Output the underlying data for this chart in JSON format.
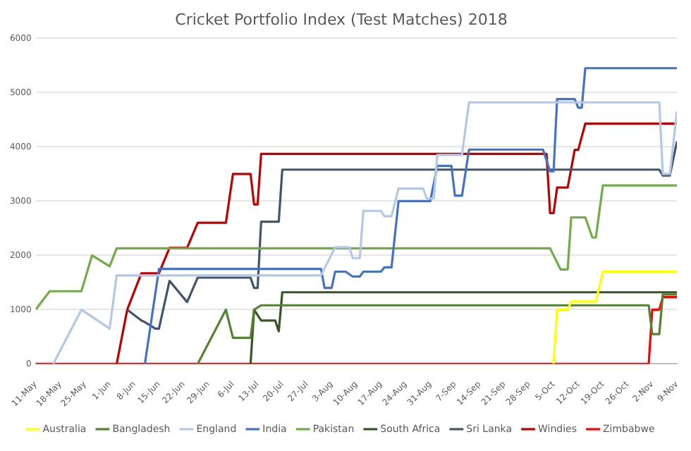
{
  "chart_data": {
    "type": "line",
    "title": "Cricket Portfolio Index (Test Matches) 2018",
    "xlim": [
      "2018-05-11",
      "2018-11-09"
    ],
    "xticks": [
      {
        "value": "2018-05-11",
        "label": "11-May"
      },
      {
        "value": "2018-05-18",
        "label": "18-May"
      },
      {
        "value": "2018-05-25",
        "label": "25-May"
      },
      {
        "value": "2018-06-01",
        "label": "1-Jun"
      },
      {
        "value": "2018-06-08",
        "label": "8-Jun"
      },
      {
        "value": "2018-06-15",
        "label": "15-Jun"
      },
      {
        "value": "2018-06-22",
        "label": "22-Jun"
      },
      {
        "value": "2018-06-29",
        "label": "29-Jun"
      },
      {
        "value": "2018-07-06",
        "label": "6-Jul"
      },
      {
        "value": "2018-07-13",
        "label": "13-Jul"
      },
      {
        "value": "2018-07-20",
        "label": "20-Jul"
      },
      {
        "value": "2018-07-27",
        "label": "27-Jul"
      },
      {
        "value": "2018-08-03",
        "label": "3-Aug"
      },
      {
        "value": "2018-08-10",
        "label": "10-Aug"
      },
      {
        "value": "2018-08-17",
        "label": "17-Aug"
      },
      {
        "value": "2018-08-24",
        "label": "24-Aug"
      },
      {
        "value": "2018-08-31",
        "label": "31-Aug"
      },
      {
        "value": "2018-09-07",
        "label": "7-Sep"
      },
      {
        "value": "2018-09-14",
        "label": "14-Sep"
      },
      {
        "value": "2018-09-21",
        "label": "21-Sep"
      },
      {
        "value": "2018-09-28",
        "label": "28-Sep"
      },
      {
        "value": "2018-10-05",
        "label": "5-Oct"
      },
      {
        "value": "2018-10-12",
        "label": "12-Oct"
      },
      {
        "value": "2018-10-19",
        "label": "19-Oct"
      },
      {
        "value": "2018-10-26",
        "label": "26-Oct"
      },
      {
        "value": "2018-11-02",
        "label": "2-Nov"
      },
      {
        "value": "2018-11-09",
        "label": "9-Nov"
      }
    ],
    "ylim": [
      0,
      6000
    ],
    "yticks": [
      0,
      1000,
      2000,
      3000,
      4000,
      5000,
      6000
    ],
    "grid": "y",
    "legend": "bottom",
    "series": [
      {
        "name": "Australia",
        "color": "#ffff00",
        "x": [
          "2018-10-05",
          "2018-10-06",
          "2018-10-09",
          "2018-10-10",
          "2018-10-17",
          "2018-10-19",
          "2018-11-09"
        ],
        "values": [
          0,
          1000,
          1000,
          1150,
          1150,
          1700,
          1700
        ]
      },
      {
        "name": "Bangladesh",
        "color": "#548235",
        "x": [
          "2018-06-26",
          "2018-07-04",
          "2018-07-06",
          "2018-07-11",
          "2018-07-12",
          "2018-07-14",
          "2018-11-01",
          "2018-11-02",
          "2018-11-04",
          "2018-11-05",
          "2018-11-09"
        ],
        "values": [
          0,
          1000,
          480,
          480,
          1000,
          1080,
          1080,
          550,
          550,
          1280,
          1280
        ]
      },
      {
        "name": "England",
        "color": "#b4c7e7",
        "x": [
          "2018-05-16",
          "2018-05-24",
          "2018-06-01",
          "2018-06-03",
          "2018-07-31",
          "2018-08-04",
          "2018-08-08",
          "2018-08-09",
          "2018-08-11",
          "2018-08-12",
          "2018-08-17",
          "2018-08-18",
          "2018-08-20",
          "2018-08-22",
          "2018-08-29",
          "2018-08-30",
          "2018-09-01",
          "2018-09-02",
          "2018-09-09",
          "2018-09-11",
          "2018-11-04",
          "2018-11-05",
          "2018-11-07",
          "2018-11-09"
        ],
        "values": [
          0,
          1000,
          650,
          1630,
          1630,
          2150,
          2150,
          1950,
          1950,
          2820,
          2820,
          2720,
          2720,
          3230,
          3230,
          3050,
          3050,
          3850,
          3850,
          4820,
          4820,
          3500,
          3500,
          4650
        ]
      },
      {
        "name": "India",
        "color": "#4472c4",
        "x": [
          "2018-06-11",
          "2018-06-15",
          "2018-07-31",
          "2018-08-01",
          "2018-08-03",
          "2018-08-04",
          "2018-08-07",
          "2018-08-09",
          "2018-08-11",
          "2018-08-12",
          "2018-08-17",
          "2018-08-18",
          "2018-08-20",
          "2018-08-22",
          "2018-08-31",
          "2018-09-02",
          "2018-09-06",
          "2018-09-07",
          "2018-09-09",
          "2018-09-11",
          "2018-10-02",
          "2018-10-04",
          "2018-10-05",
          "2018-10-06",
          "2018-10-11",
          "2018-10-12",
          "2018-10-13",
          "2018-10-14",
          "2018-11-09"
        ],
        "values": [
          0,
          1750,
          1750,
          1400,
          1400,
          1700,
          1700,
          1610,
          1610,
          1700,
          1700,
          1780,
          1780,
          3000,
          3000,
          3650,
          3650,
          3100,
          3100,
          3950,
          3950,
          3550,
          3550,
          4880,
          4880,
          4720,
          4720,
          5450,
          5450
        ]
      },
      {
        "name": "Pakistan",
        "color": "#70ad47",
        "x": [
          "2018-05-11",
          "2018-05-15",
          "2018-05-24",
          "2018-05-27",
          "2018-06-01",
          "2018-06-03",
          "2018-10-04",
          "2018-10-07",
          "2018-10-09",
          "2018-10-10",
          "2018-10-14",
          "2018-10-16",
          "2018-10-17",
          "2018-10-19",
          "2018-11-09"
        ],
        "values": [
          1000,
          1340,
          1340,
          2000,
          1800,
          2130,
          2130,
          1740,
          1740,
          2700,
          2700,
          2330,
          2330,
          3290,
          3290
        ]
      },
      {
        "name": "South Africa",
        "color": "#375623",
        "x": [
          "2018-07-11",
          "2018-07-12",
          "2018-07-14",
          "2018-07-18",
          "2018-07-19",
          "2018-07-20",
          "2018-11-09"
        ],
        "values": [
          0,
          1000,
          800,
          800,
          600,
          1320,
          1320
        ]
      },
      {
        "name": "Sri Lanka",
        "color": "#44546a",
        "x": [
          "2018-06-06",
          "2018-06-10",
          "2018-06-11",
          "2018-06-14",
          "2018-06-15",
          "2018-06-18",
          "2018-06-23",
          "2018-06-26",
          "2018-07-11",
          "2018-07-12",
          "2018-07-13",
          "2018-07-14",
          "2018-07-19",
          "2018-07-20",
          "2018-11-04",
          "2018-11-05",
          "2018-11-07",
          "2018-11-09"
        ],
        "values": [
          1000,
          800,
          770,
          650,
          650,
          1530,
          1140,
          1590,
          1590,
          1400,
          1400,
          2620,
          2620,
          3580,
          3580,
          3470,
          3470,
          4100
        ]
      },
      {
        "name": "Windies",
        "color": "#c00000",
        "x": [
          "2018-06-03",
          "2018-06-06",
          "2018-06-10",
          "2018-06-15",
          "2018-06-18",
          "2018-06-23",
          "2018-06-26",
          "2018-07-04",
          "2018-07-06",
          "2018-07-11",
          "2018-07-12",
          "2018-07-13",
          "2018-07-14",
          "2018-10-03",
          "2018-10-04",
          "2018-10-05",
          "2018-10-06",
          "2018-10-09",
          "2018-10-11",
          "2018-10-12",
          "2018-10-14",
          "2018-11-09"
        ],
        "values": [
          0,
          1000,
          1670,
          1670,
          2140,
          2140,
          2600,
          2600,
          3500,
          3500,
          2940,
          2940,
          3870,
          3870,
          2780,
          2780,
          3250,
          3250,
          3945,
          3945,
          4430,
          4430
        ]
      },
      {
        "name": "Zimbabwe",
        "color": "#ff0000",
        "x": [
          "2018-05-11",
          "2018-11-01",
          "2018-11-02",
          "2018-11-04",
          "2018-11-05",
          "2018-11-09"
        ],
        "values": [
          0,
          0,
          1000,
          1000,
          1230,
          1230
        ]
      }
    ]
  }
}
